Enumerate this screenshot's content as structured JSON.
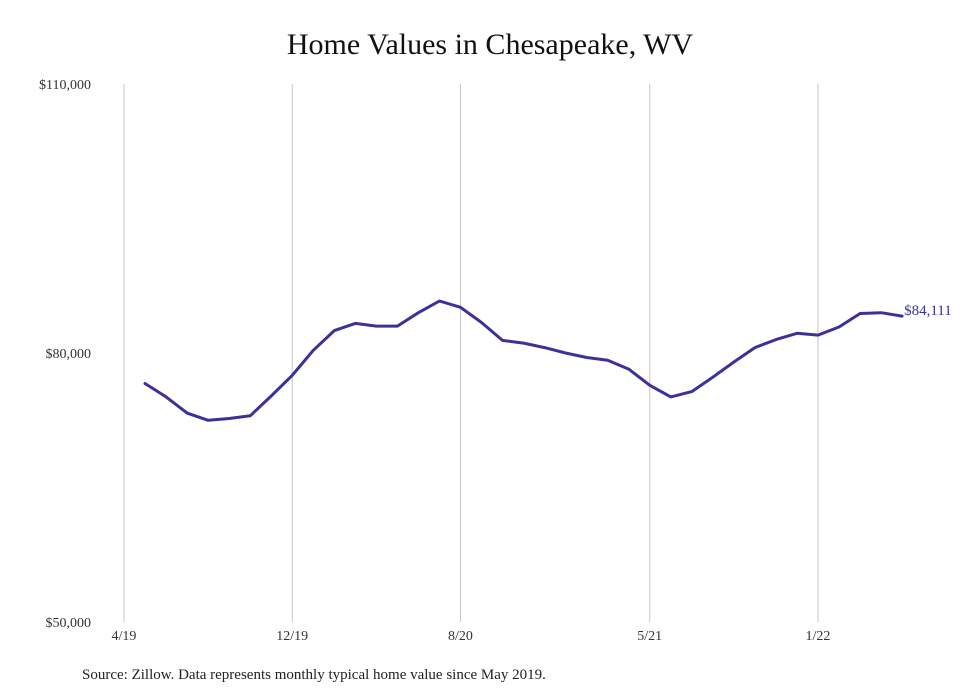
{
  "chart_data": {
    "type": "line",
    "title": "Home Values in Chesapeake, WV",
    "xlabel": "",
    "ylabel": "",
    "x_tick_labels": [
      "4/19",
      "12/19",
      "8/20",
      "5/21",
      "1/22"
    ],
    "y_tick_labels": [
      "$50,000",
      "$80,000",
      "$110,000"
    ],
    "y_ticks": [
      50000,
      80000,
      110000
    ],
    "ylim": [
      50000,
      110000
    ],
    "grid": "vertical lines at x ticks",
    "series": [
      {
        "color": "#3a3199",
        "x": [
          "2019-05",
          "2019-06",
          "2019-07",
          "2019-08",
          "2019-09",
          "2019-10",
          "2019-11",
          "2019-12",
          "2020-01",
          "2020-02",
          "2020-03",
          "2020-04",
          "2020-05",
          "2020-06",
          "2020-07",
          "2020-08",
          "2020-09",
          "2020-10",
          "2020-11",
          "2020-12",
          "2021-01",
          "2021-02",
          "2021-03",
          "2021-04",
          "2021-05",
          "2021-06",
          "2021-07",
          "2021-08",
          "2021-09",
          "2021-10",
          "2021-11",
          "2021-12",
          "2022-01",
          "2022-02",
          "2022-03",
          "2022-04",
          "2022-05"
        ],
        "values": [
          76600,
          75100,
          73300,
          72500,
          72700,
          73000,
          75200,
          77500,
          80300,
          82500,
          83300,
          83000,
          83000,
          84500,
          85800,
          85100,
          83400,
          81400,
          81100,
          80600,
          80000,
          79500,
          79200,
          78200,
          76400,
          75100,
          75700,
          77300,
          79000,
          80600,
          81500,
          82200,
          82000,
          82900,
          84400,
          84500,
          84111
        ]
      }
    ],
    "end_label": "$84,111",
    "source": "Source: Zillow. Data represents monthly typical home value since May 2019."
  }
}
